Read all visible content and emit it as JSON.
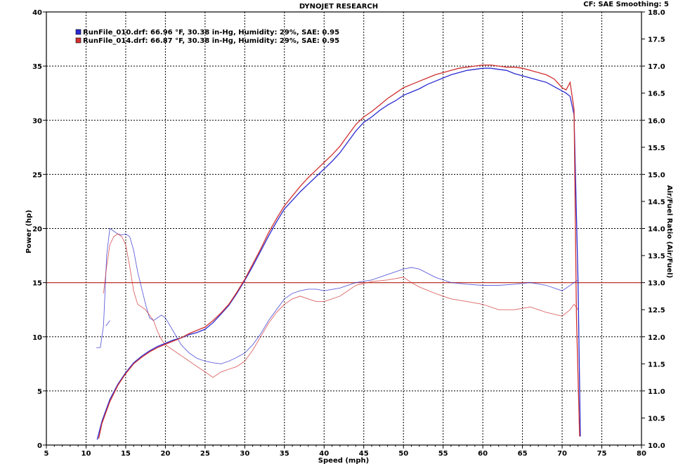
{
  "chart_data": {
    "type": "line",
    "title": "DYNOJET RESEARCH",
    "subtitle": "CF: SAE  Smoothing: 5",
    "xlabel": "Speed (mph)",
    "ylabel": "Power (hp)",
    "y2label": "Air/Fuel Ratio (Air/Fuel)",
    "xlim": [
      5,
      80
    ],
    "ylim": [
      0,
      40
    ],
    "y2lim": [
      10.0,
      18.0
    ],
    "x_ticks": [
      "5",
      "10",
      "15",
      "20",
      "25",
      "30",
      "35",
      "40",
      "45",
      "50",
      "55",
      "60",
      "65",
      "70",
      "75",
      "80"
    ],
    "y_ticks": [
      "0",
      "5",
      "10",
      "15",
      "20",
      "25",
      "30",
      "35",
      "40"
    ],
    "y2_ticks": [
      "10.0",
      "10.5",
      "11.0",
      "11.5",
      "12.0",
      "12.5",
      "13.0",
      "13.5",
      "14.0",
      "14.5",
      "15.0",
      "15.5",
      "16.0",
      "16.5",
      "17.0",
      "17.5",
      "18.0"
    ],
    "grid": true,
    "legend_position": "top-left",
    "reference_line": {
      "axis": "y2",
      "value": 13.0,
      "color": "#c0392b"
    },
    "series": [
      {
        "name": "RunFile_010.drf: 66.96 °F, 30.38 in-Hg, Humidity: 29%, SAE: 0.95",
        "color": "#2b2bd0",
        "power": {
          "x": [
            11.4,
            12,
            13,
            14,
            15,
            16,
            17,
            18,
            19,
            20,
            21,
            22,
            23,
            24,
            25,
            26,
            27,
            28,
            29,
            30,
            31,
            32,
            33,
            34,
            35,
            36,
            37,
            38,
            39,
            40,
            41,
            42,
            43,
            44,
            45,
            46,
            47,
            48,
            49,
            50,
            51,
            52,
            53,
            54,
            55,
            56,
            57,
            58,
            59,
            60,
            61,
            62,
            63,
            64,
            65,
            66,
            67,
            68,
            69,
            70,
            70.5,
            71,
            71.5,
            72,
            72.3
          ],
          "y": [
            0.5,
            2.2,
            4.2,
            5.6,
            6.7,
            7.6,
            8.2,
            8.7,
            9.1,
            9.4,
            9.7,
            9.9,
            10.2,
            10.4,
            10.7,
            11.3,
            12.1,
            12.9,
            14.0,
            15.2,
            16.5,
            17.9,
            19.3,
            20.6,
            21.8,
            22.6,
            23.4,
            24.1,
            24.8,
            25.5,
            26.2,
            27.0,
            28.0,
            29.0,
            29.8,
            30.3,
            30.9,
            31.4,
            31.8,
            32.3,
            32.6,
            32.9,
            33.3,
            33.6,
            33.9,
            34.2,
            34.4,
            34.6,
            34.7,
            34.8,
            34.8,
            34.7,
            34.6,
            34.3,
            34.1,
            33.9,
            33.7,
            33.5,
            33.1,
            32.7,
            32.5,
            32.2,
            30.5,
            15.0,
            0.8
          ]
        },
        "afr": {
          "x": [
            11.3,
            11.8,
            12.2,
            12.6,
            13.0,
            13.5,
            14.0,
            14.5,
            15.0,
            15.5,
            16.0,
            16.5,
            17.0,
            17.5,
            18.0,
            18.5,
            19.0,
            19.5,
            20.0,
            21.0,
            22.0,
            23.0,
            24.0,
            25.0,
            26.0,
            27.0,
            28.0,
            29.0,
            30.0,
            31.0,
            32.0,
            33.0,
            34.0,
            35.0,
            36.0,
            37.0,
            38.0,
            39.0,
            40.0,
            42.0,
            44.0,
            46.0,
            48.0,
            50.0,
            51.0,
            52.0,
            54.0,
            56.0,
            58.0,
            60.0,
            62.0,
            64.0,
            66.0,
            68.0,
            70.0,
            71.0,
            71.5,
            72.0
          ],
          "y": [
            11.8,
            11.8,
            12.2,
            13.5,
            14.0,
            13.95,
            13.9,
            13.88,
            13.9,
            13.85,
            13.6,
            13.2,
            12.9,
            12.6,
            12.35,
            12.3,
            12.35,
            12.4,
            12.35,
            12.1,
            11.85,
            11.7,
            11.6,
            11.55,
            11.52,
            11.5,
            11.55,
            11.62,
            11.7,
            11.85,
            12.05,
            12.3,
            12.5,
            12.7,
            12.8,
            12.85,
            12.88,
            12.88,
            12.85,
            12.9,
            13.0,
            13.05,
            13.15,
            13.25,
            13.28,
            13.25,
            13.1,
            13.0,
            12.97,
            12.95,
            12.95,
            12.97,
            13.0,
            12.95,
            12.85,
            12.95,
            13.0,
            13.05
          ]
        },
        "afr_fragment": {
          "x": [
            12.5,
            13.0
          ],
          "y": [
            12.2,
            12.3
          ]
        }
      },
      {
        "name": "RunFile_014.drf: 66.87 °F, 30.38 in-Hg, Humidity: 29%, SAE: 0.95",
        "color": "#d03030",
        "power": {
          "x": [
            11.6,
            12,
            13,
            14,
            15,
            16,
            17,
            18,
            19,
            20,
            21,
            22,
            23,
            24,
            25,
            26,
            27,
            28,
            29,
            30,
            31,
            32,
            33,
            34,
            35,
            36,
            37,
            38,
            39,
            40,
            41,
            42,
            43,
            44,
            45,
            46,
            47,
            48,
            49,
            50,
            51,
            52,
            53,
            54,
            55,
            56,
            57,
            58,
            59,
            60,
            61,
            62,
            63,
            64,
            65,
            66,
            67,
            68,
            69,
            70,
            70.5,
            71,
            71.5,
            71.8,
            72.2
          ],
          "y": [
            0.6,
            2.0,
            4.0,
            5.5,
            6.6,
            7.5,
            8.1,
            8.6,
            9.0,
            9.3,
            9.6,
            9.9,
            10.3,
            10.6,
            10.9,
            11.5,
            12.2,
            13.0,
            14.1,
            15.3,
            16.7,
            18.1,
            19.6,
            20.9,
            22.1,
            23.0,
            23.9,
            24.7,
            25.4,
            26.1,
            26.8,
            27.6,
            28.6,
            29.6,
            30.3,
            30.8,
            31.4,
            32.0,
            32.5,
            33.0,
            33.3,
            33.6,
            33.9,
            34.2,
            34.4,
            34.6,
            34.8,
            34.9,
            35.0,
            35.1,
            35.1,
            35.0,
            34.9,
            34.9,
            34.8,
            34.6,
            34.4,
            34.2,
            33.8,
            33.0,
            32.8,
            33.5,
            31.0,
            12.0,
            0.8
          ]
        },
        "afr": {
          "x": [
            12.2,
            12.6,
            13.0,
            13.5,
            14.0,
            14.5,
            15.0,
            15.5,
            16.0,
            16.5,
            17.0,
            17.5,
            18.0,
            18.5,
            19.0,
            19.5,
            20.0,
            21.0,
            22.0,
            23.0,
            24.0,
            25.0,
            26.0,
            27.0,
            28.0,
            29.0,
            30.0,
            31.0,
            32.0,
            33.0,
            34.0,
            35.0,
            36.0,
            37.0,
            38.0,
            39.0,
            40.0,
            42.0,
            44.0,
            46.0,
            48.0,
            50.0,
            51.0,
            52.0,
            54.0,
            56.0,
            58.0,
            60.0,
            62.0,
            64.0,
            66.0,
            68.0,
            70.0,
            71.0,
            71.5,
            72.0
          ],
          "y": [
            12.8,
            13.3,
            13.7,
            13.85,
            13.9,
            13.85,
            13.7,
            13.3,
            12.85,
            12.6,
            12.55,
            12.5,
            12.4,
            12.3,
            12.1,
            11.95,
            11.85,
            11.75,
            11.65,
            11.55,
            11.45,
            11.35,
            11.25,
            11.35,
            11.4,
            11.45,
            11.55,
            11.75,
            12.0,
            12.25,
            12.45,
            12.6,
            12.7,
            12.75,
            12.7,
            12.65,
            12.65,
            12.75,
            12.95,
            13.02,
            13.05,
            13.1,
            13.0,
            12.92,
            12.8,
            12.7,
            12.65,
            12.6,
            12.5,
            12.5,
            12.55,
            12.45,
            12.38,
            12.5,
            12.6,
            12.5
          ]
        }
      }
    ]
  }
}
